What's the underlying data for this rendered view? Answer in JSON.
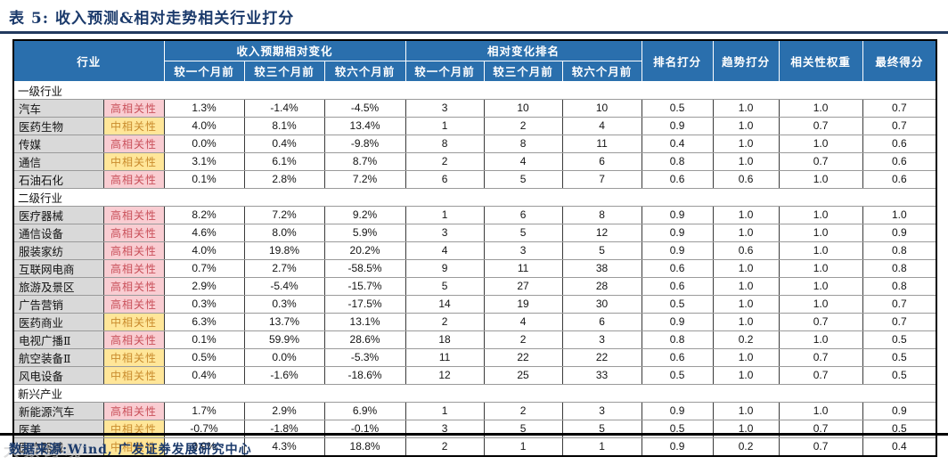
{
  "title": "表 5:  收入预测&相对走势相关行业打分",
  "footer": {
    "source": "数据来源:Wind, 广发证券发展研究中心"
  },
  "watermark": "大数跨境",
  "colors": {
    "header_blue": "#2A6FAD",
    "title_navy": "#1B3A6B",
    "tag_high_bg": "#F9CDD2",
    "tag_high_text": "#C9505A",
    "tag_mid_bg": "#FFE699",
    "tag_mid_text": "#C98B2D",
    "name_cell_gray": "#D9D9D9"
  },
  "table": {
    "industry_header": "行业",
    "group_revenue": "收入预期相对变化",
    "group_ranking": "相对变化排名",
    "sub_headers": [
      "较一个月前",
      "较三个月前",
      "较六个月前",
      "较一个月前",
      "较三个月前",
      "较六个月前"
    ],
    "score_headers": [
      "排名打分",
      "趋势打分",
      "相关性权重",
      "最终得分"
    ],
    "tag_labels": {
      "high": "高相关性",
      "mid": "中相关性"
    },
    "sections": [
      {
        "label": "一级行业",
        "rows": [
          {
            "name": "汽车",
            "tag": "高相关性",
            "tag_type": "high",
            "values": [
              "1.3%",
              "-1.4%",
              "-4.5%",
              "3",
              "10",
              "10",
              "0.5",
              "1.0",
              "1.0",
              "0.7"
            ]
          },
          {
            "name": "医药生物",
            "tag": "中相关性",
            "tag_type": "mid",
            "values": [
              "4.0%",
              "8.1%",
              "13.4%",
              "1",
              "2",
              "4",
              "0.9",
              "1.0",
              "0.7",
              "0.7"
            ]
          },
          {
            "name": "传媒",
            "tag": "高相关性",
            "tag_type": "high",
            "values": [
              "0.0%",
              "0.4%",
              "-9.8%",
              "8",
              "8",
              "11",
              "0.4",
              "1.0",
              "1.0",
              "0.6"
            ]
          },
          {
            "name": "通信",
            "tag": "中相关性",
            "tag_type": "mid",
            "values": [
              "3.1%",
              "6.1%",
              "8.7%",
              "2",
              "4",
              "6",
              "0.8",
              "1.0",
              "0.7",
              "0.6"
            ]
          },
          {
            "name": "石油石化",
            "tag": "高相关性",
            "tag_type": "high",
            "values": [
              "0.1%",
              "2.8%",
              "7.2%",
              "6",
              "5",
              "7",
              "0.6",
              "0.6",
              "1.0",
              "0.6"
            ]
          }
        ]
      },
      {
        "label": "二级行业",
        "rows": [
          {
            "name": "医疗器械",
            "tag": "高相关性",
            "tag_type": "high",
            "values": [
              "8.2%",
              "7.2%",
              "9.2%",
              "1",
              "6",
              "8",
              "0.9",
              "1.0",
              "1.0",
              "1.0"
            ]
          },
          {
            "name": "通信设备",
            "tag": "高相关性",
            "tag_type": "high",
            "values": [
              "4.6%",
              "8.0%",
              "5.9%",
              "3",
              "5",
              "12",
              "0.9",
              "1.0",
              "1.0",
              "0.9"
            ]
          },
          {
            "name": "服装家纺",
            "tag": "高相关性",
            "tag_type": "high",
            "values": [
              "4.0%",
              "19.8%",
              "20.2%",
              "4",
              "3",
              "5",
              "0.9",
              "0.6",
              "1.0",
              "0.8"
            ]
          },
          {
            "name": "互联网电商",
            "tag": "高相关性",
            "tag_type": "high",
            "values": [
              "0.7%",
              "2.7%",
              "-58.5%",
              "9",
              "11",
              "38",
              "0.6",
              "1.0",
              "1.0",
              "0.8"
            ]
          },
          {
            "name": "旅游及景区",
            "tag": "高相关性",
            "tag_type": "high",
            "values": [
              "2.9%",
              "-5.4%",
              "-15.7%",
              "5",
              "27",
              "28",
              "0.6",
              "1.0",
              "1.0",
              "0.8"
            ]
          },
          {
            "name": "广告营销",
            "tag": "高相关性",
            "tag_type": "high",
            "values": [
              "0.3%",
              "0.3%",
              "-17.5%",
              "14",
              "19",
              "30",
              "0.5",
              "1.0",
              "1.0",
              "0.7"
            ]
          },
          {
            "name": "医药商业",
            "tag": "中相关性",
            "tag_type": "mid",
            "values": [
              "6.3%",
              "13.7%",
              "13.1%",
              "2",
              "4",
              "6",
              "0.9",
              "1.0",
              "0.7",
              "0.7"
            ]
          },
          {
            "name": "电视广播Ⅱ",
            "tag": "高相关性",
            "tag_type": "high",
            "values": [
              "0.1%",
              "59.9%",
              "28.6%",
              "18",
              "2",
              "3",
              "0.8",
              "0.2",
              "1.0",
              "0.5"
            ]
          },
          {
            "name": "航空装备Ⅱ",
            "tag": "中相关性",
            "tag_type": "mid",
            "values": [
              "0.5%",
              "0.0%",
              "-5.3%",
              "11",
              "22",
              "22",
              "0.6",
              "1.0",
              "0.7",
              "0.5"
            ]
          },
          {
            "name": "风电设备",
            "tag": "中相关性",
            "tag_type": "mid",
            "values": [
              "0.4%",
              "-1.6%",
              "-18.6%",
              "12",
              "25",
              "33",
              "0.5",
              "1.0",
              "0.7",
              "0.5"
            ]
          }
        ]
      },
      {
        "label": "新兴产业",
        "rows": [
          {
            "name": "新能源汽车",
            "tag": "高相关性",
            "tag_type": "high",
            "values": [
              "1.7%",
              "2.9%",
              "6.9%",
              "1",
              "2",
              "3",
              "0.9",
              "1.0",
              "1.0",
              "0.9"
            ]
          },
          {
            "name": "医美",
            "tag": "中相关性",
            "tag_type": "mid",
            "values": [
              "-0.7%",
              "-1.8%",
              "-0.1%",
              "3",
              "5",
              "5",
              "0.5",
              "1.0",
              "0.7",
              "0.5"
            ]
          },
          {
            "name": "医疗器械",
            "tag": "中相关性",
            "tag_type": "mid",
            "values": [
              "0.9%",
              "4.3%",
              "18.8%",
              "2",
              "1",
              "1",
              "0.9",
              "0.2",
              "0.7",
              "0.4"
            ]
          }
        ]
      }
    ]
  }
}
